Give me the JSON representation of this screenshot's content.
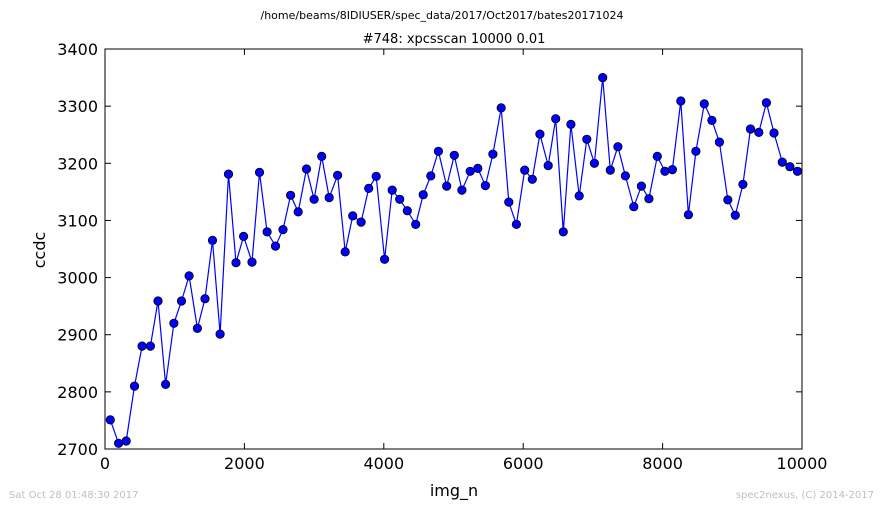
{
  "suptitle": "/home/beams/8IDIUSER/spec_data/2017/Oct2017/bates20171024",
  "footer_left": "Sat Oct 28 01:48:30 2017",
  "footer_right": "spec2nexus, (C) 2014-2017",
  "colors": {
    "series": "#0000ff",
    "marker_edge": "#000000",
    "footer": "#bfbfbf"
  },
  "chart_data": {
    "type": "line",
    "title": "#748: xpcsscan 10000 0.01",
    "xlabel": "img_n",
    "ylabel": "ccdc",
    "xlim": [
      0,
      10000
    ],
    "ylim": [
      2700,
      3400
    ],
    "xticks": [
      0,
      2000,
      4000,
      6000,
      8000,
      10000
    ],
    "xtick_labels": [
      "0",
      "2000",
      "4000",
      "6000",
      "8000",
      "10000"
    ],
    "yticks": [
      2700,
      2800,
      2900,
      3000,
      3100,
      3200,
      3300,
      3400
    ],
    "ytick_labels": [
      "2700",
      "2800",
      "2900",
      "3000",
      "3100",
      "3200",
      "3300",
      "3400"
    ],
    "grid": false,
    "series": [
      {
        "x": [
          76,
          195,
          304,
          423,
          532,
          651,
          760,
          869,
          989,
          1098,
          1206,
          1326,
          1435,
          1543,
          1652,
          1772,
          1880,
          1989,
          2109,
          2217,
          2326,
          2446,
          2554,
          2663,
          2772,
          2891,
          3000,
          3109,
          3217,
          3337,
          3446,
          3554,
          3674,
          3783,
          3891,
          4011,
          4120,
          4228,
          4337,
          4457,
          4565,
          4674,
          4783,
          4902,
          5011,
          5120,
          5239,
          5348,
          5457,
          5565,
          5685,
          5793,
          5902,
          6022,
          6130,
          6239,
          6359,
          6467,
          6576,
          6685,
          6804,
          6913,
          7022,
          7141,
          7250,
          7359,
          7467,
          7587,
          7696,
          7804,
          7924,
          8033,
          8141,
          8261,
          8370,
          8478,
          8598,
          8707,
          8815,
          8935,
          9043,
          9152,
          9261,
          9380,
          9489,
          9598,
          9717,
          9826,
          9935
        ],
        "y": [
          2751,
          2710,
          2714,
          2810,
          2880,
          2880,
          2959,
          2813,
          2920,
          2959,
          3003,
          2911,
          2963,
          3065,
          2901,
          3181,
          3026,
          3072,
          3027,
          3184,
          3080,
          3055,
          3084,
          3144,
          3115,
          3190,
          3137,
          3212,
          3140,
          3179,
          3045,
          3108,
          3097,
          3156,
          3177,
          3032,
          3153,
          3137,
          3117,
          3093,
          3145,
          3178,
          3221,
          3160,
          3214,
          3153,
          3186,
          3191,
          3161,
          3216,
          3297,
          3132,
          3093,
          3188,
          3172,
          3251,
          3196,
          3278,
          3080,
          3268,
          3143,
          3242,
          3200,
          3350,
          3188,
          3229,
          3178,
          3124,
          3160,
          3138,
          3212,
          3186,
          3189,
          3309,
          3110,
          3221,
          3304,
          3275,
          3237,
          3136,
          3109,
          3163,
          3260,
          3254,
          3306,
          3253,
          3202,
          3194,
          3186
        ]
      }
    ]
  }
}
